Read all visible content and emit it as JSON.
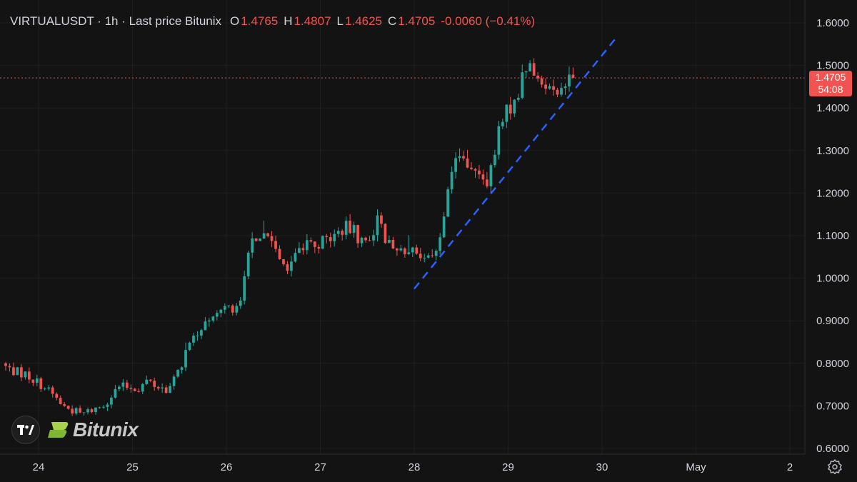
{
  "legend": {
    "symbol": "VIRTUALUSDT · 1h · Last price Bitunix",
    "o_key": "O",
    "o_val": "1.4765",
    "h_key": "H",
    "h_val": "1.4807",
    "l_key": "L",
    "l_val": "1.4625",
    "c_key": "C",
    "c_val": "1.4705",
    "change": "-0.0060 (−0.41%)"
  },
  "price_badge": {
    "price": "1.4705",
    "countdown": "54:08"
  },
  "brand": {
    "name": "Bitunix"
  },
  "icons": {
    "tradingview": "tradingview-logo-icon",
    "brand": "bitunix-logo-icon",
    "settings": "gear-icon"
  },
  "colors": {
    "background": "#131313",
    "up": "#26a69a",
    "down": "#ef5350",
    "trendline": "#2962ff",
    "grid": "#1f1f1f"
  },
  "chart_data": {
    "type": "candlestick",
    "symbol": "VIRTUALUSDT",
    "interval": "1h",
    "y_ticks": [
      "1.6000",
      "1.5000",
      "1.4000",
      "1.3000",
      "1.2000",
      "1.1000",
      "1.0000",
      "0.9000",
      "0.8000",
      "0.7000",
      "0.6000"
    ],
    "x_ticks": [
      {
        "label": "24",
        "day": 24
      },
      {
        "label": "25",
        "day": 25
      },
      {
        "label": "26",
        "day": 26
      },
      {
        "label": "27",
        "day": 27
      },
      {
        "label": "28",
        "day": 28
      },
      {
        "label": "29",
        "day": 29
      },
      {
        "label": "30",
        "day": 30
      },
      {
        "label": "May",
        "day": 31
      },
      {
        "label": "2",
        "day": 32
      }
    ],
    "ylim": [
      0.595,
      1.625
    ],
    "last_price": 1.4705,
    "trendline": {
      "start": {
        "day": 28.0,
        "price": 0.975
      },
      "end": {
        "day": 30.15,
        "price": 1.565
      },
      "style": "dashed"
    },
    "path": [
      [
        23.65,
        0.8
      ],
      [
        23.7,
        0.79
      ],
      [
        23.8,
        0.78
      ],
      [
        23.9,
        0.775
      ],
      [
        24.0,
        0.76
      ],
      [
        24.1,
        0.745
      ],
      [
        24.2,
        0.725
      ],
      [
        24.3,
        0.7
      ],
      [
        24.4,
        0.69
      ],
      [
        24.5,
        0.68
      ],
      [
        24.6,
        0.69
      ],
      [
        24.72,
        0.7
      ],
      [
        24.8,
        0.72
      ],
      [
        24.9,
        0.745
      ],
      [
        25.0,
        0.745
      ],
      [
        25.1,
        0.74
      ],
      [
        25.2,
        0.76
      ],
      [
        25.3,
        0.745
      ],
      [
        25.4,
        0.74
      ],
      [
        25.45,
        0.745
      ],
      [
        25.55,
        0.79
      ],
      [
        25.65,
        0.85
      ],
      [
        25.75,
        0.88
      ],
      [
        25.85,
        0.91
      ],
      [
        25.95,
        0.92
      ],
      [
        26.05,
        0.93
      ],
      [
        26.15,
        0.925
      ],
      [
        26.22,
        0.98
      ],
      [
        26.3,
        1.08
      ],
      [
        26.4,
        1.09
      ],
      [
        26.5,
        1.1
      ],
      [
        26.6,
        1.06
      ],
      [
        26.7,
        1.02
      ],
      [
        26.8,
        1.07
      ],
      [
        26.9,
        1.08
      ],
      [
        27.0,
        1.08
      ],
      [
        27.1,
        1.09
      ],
      [
        27.2,
        1.1
      ],
      [
        27.3,
        1.12
      ],
      [
        27.4,
        1.11
      ],
      [
        27.5,
        1.08
      ],
      [
        27.6,
        1.11
      ],
      [
        27.68,
        1.15
      ],
      [
        27.75,
        1.08
      ],
      [
        27.85,
        1.06
      ],
      [
        27.95,
        1.07
      ],
      [
        28.05,
        1.08
      ],
      [
        28.15,
        1.04
      ],
      [
        28.25,
        1.06
      ],
      [
        28.35,
        1.12
      ],
      [
        28.45,
        1.27
      ],
      [
        28.55,
        1.29
      ],
      [
        28.65,
        1.27
      ],
      [
        28.75,
        1.22
      ],
      [
        28.85,
        1.24
      ],
      [
        28.95,
        1.35
      ],
      [
        29.05,
        1.4
      ],
      [
        29.15,
        1.44
      ],
      [
        29.25,
        1.51
      ],
      [
        29.35,
        1.46
      ],
      [
        29.45,
        1.45
      ],
      [
        29.55,
        1.46
      ],
      [
        29.62,
        1.43
      ],
      [
        29.68,
        1.4705
      ]
    ]
  }
}
